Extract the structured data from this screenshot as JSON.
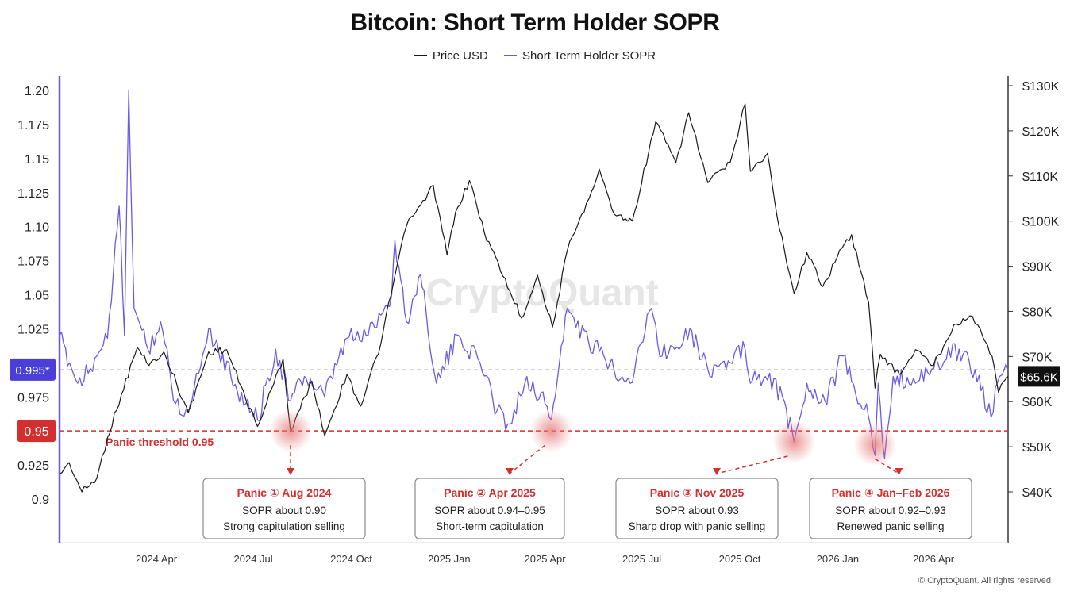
{
  "chart_data": {
    "type": "line",
    "title": "Bitcoin: Short Term Holder SOPR",
    "legend": [
      "Price USD",
      "Short Term Holder SOPR"
    ],
    "legend_placement": "top-center",
    "x_ticks": [
      "2024 Apr",
      "2024 Jul",
      "2024 Oct",
      "2025 Jan",
      "2025 Apr",
      "2025 Jul",
      "2025 Oct",
      "2026 Jan",
      "2026 Apr"
    ],
    "x_range": [
      "2024-01-01",
      "2026-06-10"
    ],
    "y_left": {
      "label": "",
      "ticks": [
        "1.20",
        "1.175",
        "1.15",
        "1.125",
        "1.10",
        "1.075",
        "1.05",
        "1.025",
        "0.975",
        "0.925",
        "0.9"
      ],
      "range": [
        0.9,
        1.2
      ]
    },
    "y_right": {
      "label": "",
      "ticks": [
        "$130K",
        "$120K",
        "$110K",
        "$100K",
        "$90K",
        "$80K",
        "$70K",
        "$60K",
        "$50K",
        "$40K"
      ],
      "range": [
        40000,
        130000
      ]
    },
    "grid": false,
    "series": [
      {
        "name": "Price USD",
        "color": "#1a1a1a",
        "axis": "right",
        "points": [
          [
            "2024-01-01",
            44000
          ],
          [
            "2024-01-10",
            46500
          ],
          [
            "2024-01-22",
            40000
          ],
          [
            "2024-02-05",
            43000
          ],
          [
            "2024-02-15",
            52000
          ],
          [
            "2024-02-28",
            61500
          ],
          [
            "2024-03-14",
            72000
          ],
          [
            "2024-03-25",
            68000
          ],
          [
            "2024-04-08",
            71000
          ],
          [
            "2024-04-20",
            64000
          ],
          [
            "2024-05-01",
            57500
          ],
          [
            "2024-05-20",
            71000
          ],
          [
            "2024-06-06",
            71500
          ],
          [
            "2024-06-24",
            60500
          ],
          [
            "2024-07-05",
            54500
          ],
          [
            "2024-07-29",
            69500
          ],
          [
            "2024-08-05",
            53500
          ],
          [
            "2024-08-25",
            64500
          ],
          [
            "2024-09-06",
            52500
          ],
          [
            "2024-09-27",
            66000
          ],
          [
            "2024-10-10",
            59000
          ],
          [
            "2024-10-29",
            73000
          ],
          [
            "2024-11-12",
            89000
          ],
          [
            "2024-11-22",
            99000
          ],
          [
            "2024-12-05",
            103500
          ],
          [
            "2024-12-17",
            108000
          ],
          [
            "2024-12-30",
            92500
          ],
          [
            "2025-01-07",
            102000
          ],
          [
            "2025-01-20",
            109000
          ],
          [
            "2025-02-03",
            97500
          ],
          [
            "2025-02-27",
            84500
          ],
          [
            "2025-03-10",
            78500
          ],
          [
            "2025-03-25",
            88000
          ],
          [
            "2025-04-08",
            76500
          ],
          [
            "2025-04-22",
            93500
          ],
          [
            "2025-05-10",
            104000
          ],
          [
            "2025-05-22",
            111500
          ],
          [
            "2025-06-05",
            101500
          ],
          [
            "2025-06-22",
            100000
          ],
          [
            "2025-07-14",
            122000
          ],
          [
            "2025-08-02",
            113000
          ],
          [
            "2025-08-14",
            124000
          ],
          [
            "2025-09-01",
            108500
          ],
          [
            "2025-09-22",
            113000
          ],
          [
            "2025-10-06",
            126000
          ],
          [
            "2025-10-11",
            111000
          ],
          [
            "2025-10-27",
            115000
          ],
          [
            "2025-11-05",
            101000
          ],
          [
            "2025-11-21",
            84000
          ],
          [
            "2025-12-03",
            93000
          ],
          [
            "2025-12-18",
            85500
          ],
          [
            "2026-01-05",
            94000
          ],
          [
            "2026-01-14",
            97000
          ],
          [
            "2026-01-30",
            82000
          ],
          [
            "2026-02-05",
            63000
          ],
          [
            "2026-02-10",
            70500
          ],
          [
            "2026-02-28",
            66000
          ],
          [
            "2026-03-15",
            71500
          ],
          [
            "2026-04-01",
            68000
          ],
          [
            "2026-04-20",
            77000
          ],
          [
            "2026-05-05",
            79000
          ],
          [
            "2026-05-15",
            76000
          ],
          [
            "2026-05-26",
            70000
          ],
          [
            "2026-06-01",
            62000
          ],
          [
            "2026-06-06",
            64500
          ],
          [
            "2026-06-10",
            65600
          ]
        ]
      },
      {
        "name": "Short Term Holder SOPR",
        "color": "#6a5be6",
        "axis": "left",
        "points": [
          [
            "2024-01-01",
            1.02
          ],
          [
            "2024-01-18",
            0.985
          ],
          [
            "2024-02-05",
            1.005
          ],
          [
            "2024-02-15",
            1.018
          ],
          [
            "2024-02-26",
            1.115
          ],
          [
            "2024-03-02",
            1.02
          ],
          [
            "2024-03-06",
            1.2
          ],
          [
            "2024-03-11",
            1.04
          ],
          [
            "2024-03-24",
            1.01
          ],
          [
            "2024-04-05",
            1.03
          ],
          [
            "2024-04-19",
            0.97
          ],
          [
            "2024-05-01",
            0.965
          ],
          [
            "2024-05-20",
            1.025
          ],
          [
            "2024-06-10",
            0.99
          ],
          [
            "2024-06-24",
            0.97
          ],
          [
            "2024-07-05",
            0.958
          ],
          [
            "2024-07-22",
            1.01
          ],
          [
            "2024-08-05",
            0.972
          ],
          [
            "2024-08-18",
            0.99
          ],
          [
            "2024-09-06",
            0.975
          ],
          [
            "2024-09-27",
            1.018
          ],
          [
            "2024-10-15",
            1.02
          ],
          [
            "2024-11-08",
            1.05
          ],
          [
            "2024-11-11",
            1.09
          ],
          [
            "2024-11-22",
            1.03
          ],
          [
            "2024-12-05",
            1.065
          ],
          [
            "2024-12-10",
            1.04
          ],
          [
            "2024-12-20",
            0.985
          ],
          [
            "2025-01-10",
            1.02
          ],
          [
            "2025-01-30",
            1.0
          ],
          [
            "2025-02-15",
            0.965
          ],
          [
            "2025-02-27",
            0.955
          ],
          [
            "2025-03-15",
            0.99
          ],
          [
            "2025-04-01",
            0.97
          ],
          [
            "2025-04-07",
            0.958
          ],
          [
            "2025-04-22",
            1.04
          ],
          [
            "2025-05-12",
            1.015
          ],
          [
            "2025-06-01",
            1.0
          ],
          [
            "2025-06-20",
            0.985
          ],
          [
            "2025-07-10",
            1.04
          ],
          [
            "2025-07-20",
            1.005
          ],
          [
            "2025-08-15",
            1.025
          ],
          [
            "2025-09-01",
            0.995
          ],
          [
            "2025-09-22",
            1.0
          ],
          [
            "2025-10-06",
            1.01
          ],
          [
            "2025-10-11",
            0.985
          ],
          [
            "2025-10-25",
            0.99
          ],
          [
            "2025-11-10",
            0.975
          ],
          [
            "2025-11-21",
            0.942
          ],
          [
            "2025-12-03",
            0.985
          ],
          [
            "2025-12-20",
            0.972
          ],
          [
            "2026-01-06",
            1.005
          ],
          [
            "2026-01-22",
            0.97
          ],
          [
            "2026-01-30",
            0.96
          ],
          [
            "2026-02-05",
            0.932
          ],
          [
            "2026-02-08",
            0.985
          ],
          [
            "2026-02-14",
            0.93
          ],
          [
            "2026-02-22",
            0.99
          ],
          [
            "2026-03-15",
            0.985
          ],
          [
            "2026-04-05",
            1.0
          ],
          [
            "2026-04-25",
            1.01
          ],
          [
            "2026-05-10",
            0.995
          ],
          [
            "2026-05-25",
            0.96
          ],
          [
            "2026-06-02",
            0.99
          ],
          [
            "2026-06-10",
            0.995
          ]
        ]
      }
    ],
    "reference_lines": [
      {
        "label": "0.995*",
        "value": 0.995,
        "style": "dashed",
        "color": "#bbbbbb"
      },
      {
        "label": "0.95",
        "value": 0.95,
        "style": "dashed",
        "color": "#d32f2f"
      }
    ],
    "threshold_label": "Panic threshold 0.95",
    "price_badge": "$65.6K",
    "annotations": [
      {
        "date": "2024-08-05",
        "sopr_value": 0.95,
        "title": "Panic ① Aug 2024",
        "line1": "SOPR about 0.90",
        "line2": "Strong capitulation selling"
      },
      {
        "date": "2025-04-07",
        "sopr_value": 0.95,
        "title": "Panic ② Apr 2025",
        "line1": "SOPR about 0.94–0.95",
        "line2": "Short-term capitulation"
      },
      {
        "date": "2025-11-21",
        "sopr_value": 0.942,
        "title": "Panic ③ Nov 2025",
        "line1": "SOPR about 0.93",
        "line2": "Sharp drop with panic selling"
      },
      {
        "date": "2026-02-05",
        "sopr_value": 0.94,
        "title": "Panic ④ Jan–Feb 2026",
        "line1": "SOPR about 0.92–0.93",
        "line2": "Renewed panic selling"
      }
    ],
    "watermark": "CryptoQuant"
  },
  "copyright": "© CryptoQuant. All rights reserved"
}
